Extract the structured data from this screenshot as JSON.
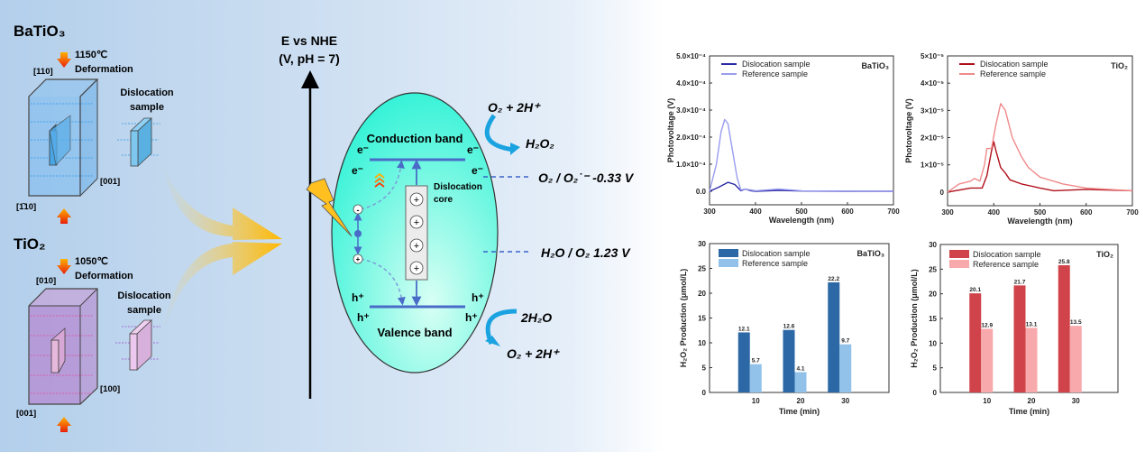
{
  "schematic": {
    "batio3": {
      "title": "BaTiO₃",
      "temperature": "1150℃",
      "process": "Deformation",
      "dir_top": "[110]",
      "dir_right": "[001]",
      "dir_bottom": "[1̄10]",
      "sample_line1": "Dislocation",
      "sample_line2": "sample"
    },
    "tio2": {
      "title": "TiO₂",
      "temperature": "1050℃",
      "process": "Deformation",
      "dir_top": "[010]",
      "dir_right": "[100]",
      "dir_bottom": "[001]",
      "sample_line1": "Dislocation",
      "sample_line2": "sample"
    }
  },
  "band_diagram": {
    "axis_title_1": "E vs NHE",
    "axis_title_2": "(V, pH = 7)",
    "conduction_band": "Conduction band",
    "valence_band": "Valence band",
    "electron": "e⁻",
    "hole": "h⁺",
    "core_line1": "Dislocation",
    "core_line2": "core",
    "plus": "+",
    "minus": "-",
    "reduction_reactant": "O₂ + 2H⁺",
    "reduction_product": "H₂O₂",
    "oxidation_reactant": "2H₂O",
    "oxidation_product": "O₂ + 2H⁺",
    "potential_1": "O₂ / O₂˙⁻  -0.33 V",
    "potential_2": "H₂O / O₂ 1.23 V"
  },
  "colors": {
    "batio3_dark": "#2a2aa6",
    "batio3_light": "#9a9cf0",
    "tio2_dark": "#b0101a",
    "tio2_light": "#f08a8a",
    "bar_blue": "#2b68a5",
    "bar_lightblue": "#92c2ea",
    "bar_red": "#d0434a",
    "bar_pink": "#f7a9ab"
  },
  "chart_data": [
    {
      "type": "line",
      "label": "BaTiO₃",
      "xlabel": "Wavelength (nm)",
      "ylabel": "Photovoltage (V)",
      "xlim": [
        300,
        700
      ],
      "ylim": [
        -5e-05,
        0.0005
      ],
      "xticks": [
        300,
        400,
        500,
        600,
        700
      ],
      "xtick_labels": [
        "300",
        "400",
        "500",
        "600",
        "700"
      ],
      "yticks": [
        0,
        0.0001,
        0.0002,
        0.0003,
        0.0004,
        0.0005
      ],
      "ytick_labels": [
        "0.0",
        "1.0×10⁻⁴",
        "2.0×10⁻⁴",
        "3.0×10⁻⁴",
        "4.0×10⁻⁴",
        "5.0×10⁻⁴"
      ],
      "legend_position": "top-left",
      "series": [
        {
          "name": "Dislocation sample",
          "color": "#2a2aa6",
          "x": [
            300,
            320,
            340,
            355,
            368,
            378,
            390,
            400,
            450,
            500,
            600,
            700
          ],
          "y": [
            0,
            1.5e-05,
            3.3e-05,
            2.5e-05,
            2e-06,
            8e-06,
            2e-06,
            0,
            3e-06,
            1e-06,
            0,
            0
          ]
        },
        {
          "name": "Reference sample",
          "color": "#9a9cf0",
          "x": [
            300,
            315,
            325,
            333,
            340,
            350,
            360,
            368,
            378,
            400,
            450,
            500,
            700
          ],
          "y": [
            0,
            0.0001,
            0.00022,
            0.000265,
            0.00025,
            0.00015,
            5e-05,
            5e-06,
            8e-06,
            2e-06,
            8e-06,
            2e-06,
            0
          ]
        }
      ]
    },
    {
      "type": "line",
      "label": "TiO₂",
      "xlabel": "Wavelength (nm)",
      "ylabel": "Photovoltage (V)",
      "xlim": [
        300,
        700
      ],
      "ylim": [
        -5e-06,
        5e-05
      ],
      "xticks": [
        300,
        400,
        500,
        600,
        700
      ],
      "xtick_labels": [
        "300",
        "400",
        "500",
        "600",
        "700"
      ],
      "yticks": [
        0,
        1e-05,
        2e-05,
        3e-05,
        4e-05,
        5e-05
      ],
      "ytick_labels": [
        "0",
        "1×10⁻⁵",
        "2×10⁻⁵",
        "3×10⁻⁵",
        "4×10⁻⁵",
        "5×10⁻⁵"
      ],
      "legend_position": "top-left",
      "series": [
        {
          "name": "Dislocation sample",
          "color": "#b0101a",
          "x": [
            300,
            350,
            375,
            385,
            395,
            400,
            405,
            415,
            425,
            435,
            460,
            500,
            530,
            600,
            700
          ],
          "y": [
            0,
            1.5e-06,
            1.5e-06,
            6e-06,
            1.5e-05,
            1.85e-05,
            1.5e-05,
            9e-06,
            7e-06,
            4.5e-06,
            3e-06,
            1.5e-06,
            5e-07,
            1e-06,
            5e-07
          ]
        },
        {
          "name": "Reference sample",
          "color": "#f08a8a",
          "x": [
            300,
            325,
            350,
            358,
            370,
            380,
            385,
            395,
            405,
            415,
            425,
            440,
            460,
            475,
            500,
            550,
            600,
            700
          ],
          "y": [
            0,
            3e-06,
            4e-06,
            5e-06,
            4e-06,
            1e-05,
            1.6e-05,
            1.6e-05,
            2.5e-05,
            3.25e-05,
            3e-05,
            2e-05,
            1.3e-05,
            9e-06,
            5.5e-06,
            3e-06,
            1.5e-06,
            5e-07
          ]
        }
      ]
    },
    {
      "type": "bar",
      "label": "BaTiO₃",
      "xlabel": "Time (min)",
      "ylabel": "H₂O₂ Production (μmol/L)",
      "categories": [
        "10",
        "20",
        "30"
      ],
      "ylim": [
        0,
        30
      ],
      "yticks": [
        "0",
        "5",
        "10",
        "15",
        "20",
        "25",
        "30"
      ],
      "legend_position": "top-left",
      "series": [
        {
          "name": "Dislocation sample",
          "color": "#2b68a5",
          "values": [
            12.1,
            12.6,
            22.2
          ],
          "labels": [
            "12.1",
            "12.6",
            "22.2"
          ]
        },
        {
          "name": "Reference sample",
          "color": "#92c2ea",
          "values": [
            5.7,
            4.1,
            9.7
          ],
          "labels": [
            "5.7",
            "4.1",
            "9.7"
          ]
        }
      ]
    },
    {
      "type": "bar",
      "label": "TiO₂",
      "xlabel": "Time (min)",
      "ylabel": "H₂O₂ Production (μmol/L)",
      "categories": [
        "10",
        "20",
        "30"
      ],
      "ylim": [
        0,
        30
      ],
      "yticks": [
        "0",
        "5",
        "10",
        "15",
        "20",
        "25",
        "30"
      ],
      "legend_position": "top-left",
      "series": [
        {
          "name": "Dislocation sample",
          "color": "#d0434a",
          "values": [
            20.1,
            21.7,
            25.8
          ],
          "labels": [
            "20.1",
            "21.7",
            "25.8"
          ]
        },
        {
          "name": "Reference sample",
          "color": "#f7a9ab",
          "values": [
            12.9,
            13.1,
            13.5
          ],
          "labels": [
            "12.9",
            "13.1",
            "13.5"
          ]
        }
      ]
    }
  ]
}
